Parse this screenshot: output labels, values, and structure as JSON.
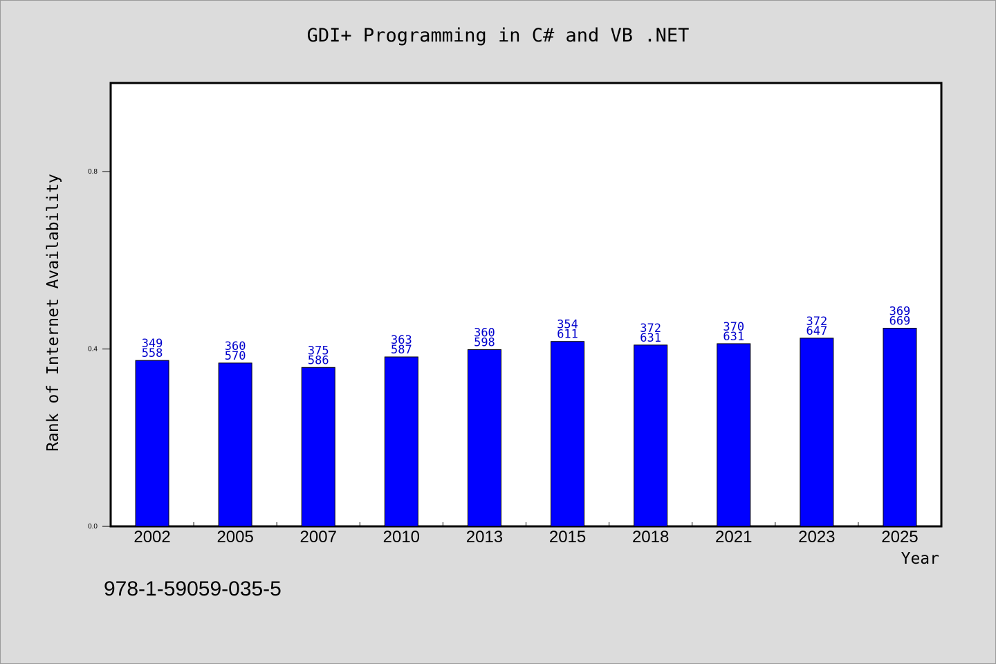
{
  "chart_data": {
    "type": "bar",
    "title": "GDI+ Programming in C# and VB .NET",
    "xlabel": "Year",
    "ylabel": "Rank of Internet Availability",
    "categories": [
      "2002",
      "2005",
      "2007",
      "2010",
      "2013",
      "2015",
      "2018",
      "2021",
      "2023",
      "2025"
    ],
    "values": [
      0.3742,
      0.3684,
      0.3584,
      0.3822,
      0.3987,
      0.417,
      0.409,
      0.412,
      0.4245,
      0.447
    ],
    "labels_top": [
      "349",
      "360",
      "375",
      "363",
      "360",
      "354",
      "372",
      "370",
      "372",
      "369"
    ],
    "labels_bottom": [
      "558",
      "570",
      "586",
      "587",
      "598",
      "611",
      "631",
      "631",
      "647",
      "669"
    ],
    "ylim": [
      0,
      1
    ],
    "yticks": [
      0.0,
      0.4,
      0.8
    ],
    "ytick_labels": [
      "0.0",
      "0.4",
      "0.8"
    ],
    "grid": false,
    "bar_color": "#0000ff",
    "label_color": "#0000cc",
    "caption": "978-1-59059-035-5"
  }
}
